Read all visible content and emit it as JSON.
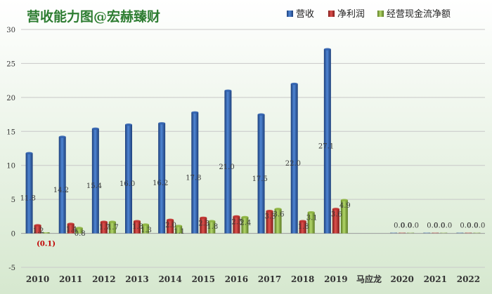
{
  "chart_data": {
    "type": "bar",
    "title": "营收能力图@宏赫臻财",
    "categories": [
      "2010",
      "2011",
      "2012",
      "2013",
      "2014",
      "2015",
      "2016",
      "2017",
      "2018",
      "2019",
      "马应龙",
      "2020",
      "2021",
      "2022"
    ],
    "series": [
      {
        "name": "营收",
        "color": "#2f5fae",
        "values": [
          11.8,
          14.2,
          15.4,
          16.0,
          16.2,
          17.8,
          21.0,
          17.5,
          22.0,
          27.1,
          null,
          0.0,
          0.0,
          0.0
        ],
        "labels": [
          "11.8",
          "14.2",
          "15.4",
          "16.0",
          "16.2",
          "17.8",
          "21.0",
          "17.5",
          "22.0",
          "27.1",
          "",
          "0.0",
          "0.0",
          "0.0"
        ]
      },
      {
        "name": "净利润",
        "color": "#c0302d",
        "values": [
          1.2,
          1.4,
          1.7,
          1.8,
          2.0,
          2.3,
          2.5,
          3.3,
          1.8,
          3.6,
          null,
          0.0,
          0.0,
          0.0
        ],
        "labels": [
          "1.2",
          "1.4",
          "1.7",
          "1.8",
          "2.0",
          "2.3",
          "2.5",
          "3.3",
          "1.8",
          "3.6",
          "",
          "0.0",
          "0.0",
          "0.0"
        ]
      },
      {
        "name": "经营现金流净额",
        "color": "#8db43e",
        "values": [
          -0.1,
          0.8,
          1.7,
          1.3,
          1.1,
          1.8,
          2.4,
          3.6,
          3.1,
          4.9,
          null,
          0.0,
          0.0,
          0.0
        ],
        "labels": [
          "(0.1)",
          "0.8",
          "1.7",
          "1.3",
          "1.1",
          "1.8",
          "2.4",
          "3.6",
          "3.1",
          "4.9",
          "",
          "0.0",
          "0.0",
          "0.0"
        ]
      }
    ],
    "ylim": [
      -5,
      30
    ],
    "yticks": [
      -5,
      0,
      5,
      10,
      15,
      20,
      25,
      30
    ],
    "grid": true,
    "legend": "top-right",
    "colors": {
      "title": "#2e7d32",
      "background_top": "#ffffff",
      "background_bottom": "#d6e8cf",
      "negative_label": "#c00000",
      "axis_text": "#333333"
    }
  }
}
